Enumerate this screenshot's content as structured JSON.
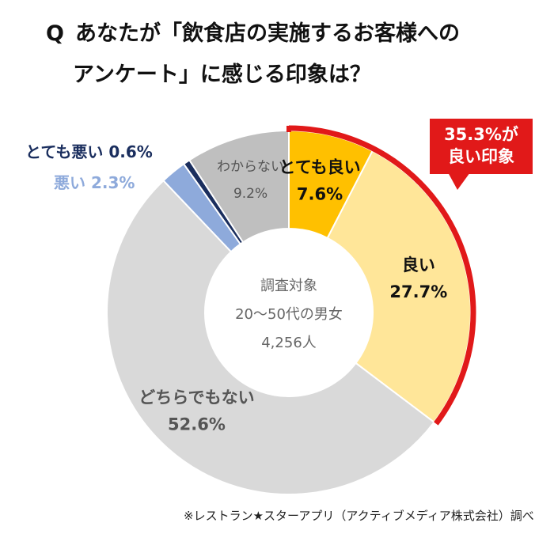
{
  "title": {
    "q": "Q",
    "line1": "あなたが「飲食店の実施するお客様への",
    "line2": "アンケート」に感じる印象は？"
  },
  "chart_data": {
    "type": "pie",
    "style": "donut",
    "title": "あなたが「飲食店の実施するお客様へのアンケート」に感じる印象は？",
    "unit": "%",
    "slices": [
      {
        "label": "とても良い",
        "value": 7.6,
        "display": "7.6%",
        "color": "#ffc000"
      },
      {
        "label": "良い",
        "value": 27.7,
        "display": "27.7%",
        "color": "#ffe699"
      },
      {
        "label": "どちらでもない",
        "value": 52.6,
        "display": "52.6%",
        "color": "#d9d9d9"
      },
      {
        "label": "悪い",
        "value": 2.3,
        "display": "2.3%",
        "color": "#8eaadb"
      },
      {
        "label": "とても悪い",
        "value": 0.6,
        "display": "0.6%",
        "color": "#1a2e5e"
      },
      {
        "label": "わからない",
        "value": 9.2,
        "display": "9.2%",
        "color": "#bfbfbf"
      }
    ],
    "center": {
      "line1": "調査対象",
      "line2": "20～50代の男女",
      "line3": "4,256人"
    },
    "callout": {
      "line1": "35.3%が",
      "line2": "良い印象",
      "color": "#e11919"
    },
    "external_labels": {
      "very_bad": "とても悪い 0.6%",
      "bad": "悪い 2.3%"
    }
  },
  "footer": {
    "source": "※レストラン★スターアプリ（アクティブメディア株式会社）調べ"
  }
}
